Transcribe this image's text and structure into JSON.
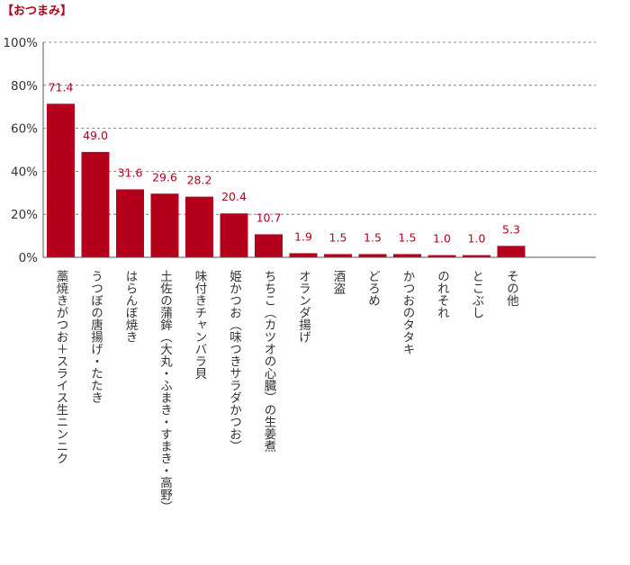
{
  "chart_data": {
    "type": "bar",
    "title": "【おつまみ】",
    "categories": [
      "藁焼きがつお＋スライス生ニンニク",
      "うつぼの唐揚げ・たたき",
      "はらんぼ焼き",
      "土佐の蒲鉾（大丸・ふまき・すまき・高野）",
      "味付きチャンバラ貝",
      "姫かつお（味つきサラダかつお）",
      "ちちこ（カツオの心臓）の生姜煮",
      "オランダ揚げ",
      "酒盗",
      "どろめ",
      "かつおのタタキ",
      "のれそれ",
      "とこぶし",
      "その他"
    ],
    "values": [
      71.4,
      49.0,
      31.6,
      29.6,
      28.2,
      20.4,
      10.7,
      1.9,
      1.5,
      1.5,
      1.5,
      1.0,
      1.0,
      5.3
    ],
    "data_labels": [
      "71.4",
      "49.0",
      "31.6",
      "29.6",
      "28.2",
      "20.4",
      "10.7",
      "1.9",
      "1.5",
      "1.5",
      "1.5",
      "1.0",
      "1.0",
      "5.3"
    ],
    "ylim": [
      0,
      100
    ],
    "yticks": [
      0,
      20,
      40,
      60,
      80,
      100
    ],
    "ytick_labels": [
      "0%",
      "20%",
      "40%",
      "60%",
      "80%",
      "100%"
    ],
    "grid": true,
    "legend": "none",
    "colors": {
      "bar": "#b5001c",
      "title": "#b5001c",
      "data_label": "#b5001c",
      "grid": "#666666"
    }
  }
}
